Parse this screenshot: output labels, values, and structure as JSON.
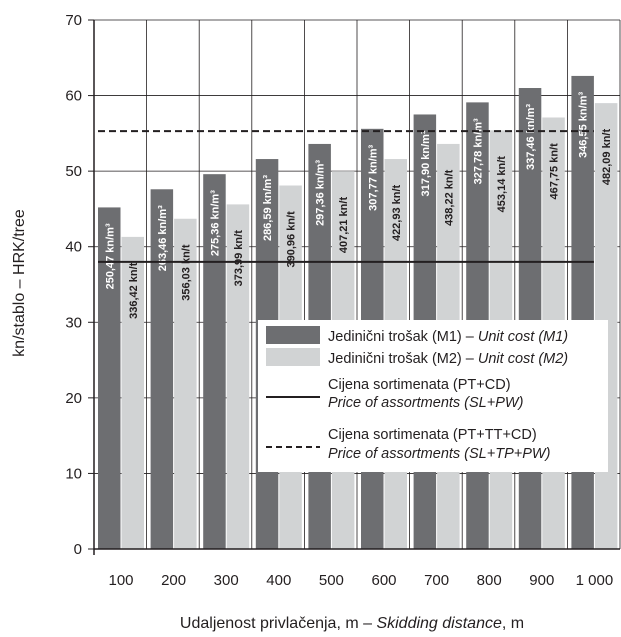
{
  "chart_data": {
    "type": "bar",
    "xlabel": "Udaljenost privlačenja, m",
    "xlabel_en": "Skidding distance",
    "xlabel_unit": ", m",
    "ylabel": "kn/stablo  –  HRK/tree",
    "ylim": [
      0,
      70
    ],
    "yticks": [
      0,
      10,
      20,
      30,
      40,
      50,
      60,
      70
    ],
    "grid": true,
    "categories": [
      "100",
      "200",
      "300",
      "400",
      "500",
      "600",
      "700",
      "800",
      "900",
      "1 000"
    ],
    "series": [
      {
        "name": "Jedinični trošak (M1) – Unit cost (M1)",
        "name_hr": "Jedinični trošak (M1) – ",
        "name_en": "Unit cost (M1)",
        "color": "#6d6e71",
        "values": [
          45.2,
          47.6,
          49.6,
          51.6,
          53.6,
          55.6,
          57.5,
          59.1,
          61.0,
          62.6
        ],
        "labels": [
          "250,47 kn/m³",
          "263,46 kn/m³",
          "275,36 kn/m³",
          "286,59 kn/m³",
          "297,36 kn/m³",
          "307,77 kn/m³",
          "317,90 kn/m³",
          "327,78 kn/m³",
          "337,46 kn/m³",
          "346,55 kn/m³"
        ]
      },
      {
        "name": "Jedinični trošak (M2) – Unit cost (M2)",
        "name_hr": "Jedinični trošak (M2) – ",
        "name_en": "Unit cost (M2)",
        "color": "#d1d3d4",
        "values": [
          41.3,
          43.7,
          45.6,
          48.1,
          50.0,
          51.6,
          53.6,
          55.4,
          57.1,
          59.0
        ],
        "labels": [
          "336,42 kn/t",
          "356,03 kn/t",
          "373,99 kn/t",
          "390,96 kn/t",
          "407,21 kn/t",
          "422,93 kn/t",
          "438,22 kn/t",
          "453,14 kn/t",
          "467,75 kn/t",
          "482,09 kn/t"
        ]
      }
    ],
    "lines": [
      {
        "name_hr": "Cijena sortimenata (PT+CD)",
        "name_en": "Price of assortments (SL+PW)",
        "style": "solid",
        "value": 38.0
      },
      {
        "name_hr": "Cijena sortimenata (PT+TT+CD)",
        "name_en": "Price of assortments (SL+TP+PW)",
        "style": "dashed",
        "value": 55.3
      }
    ],
    "legend_position": "center-right"
  }
}
